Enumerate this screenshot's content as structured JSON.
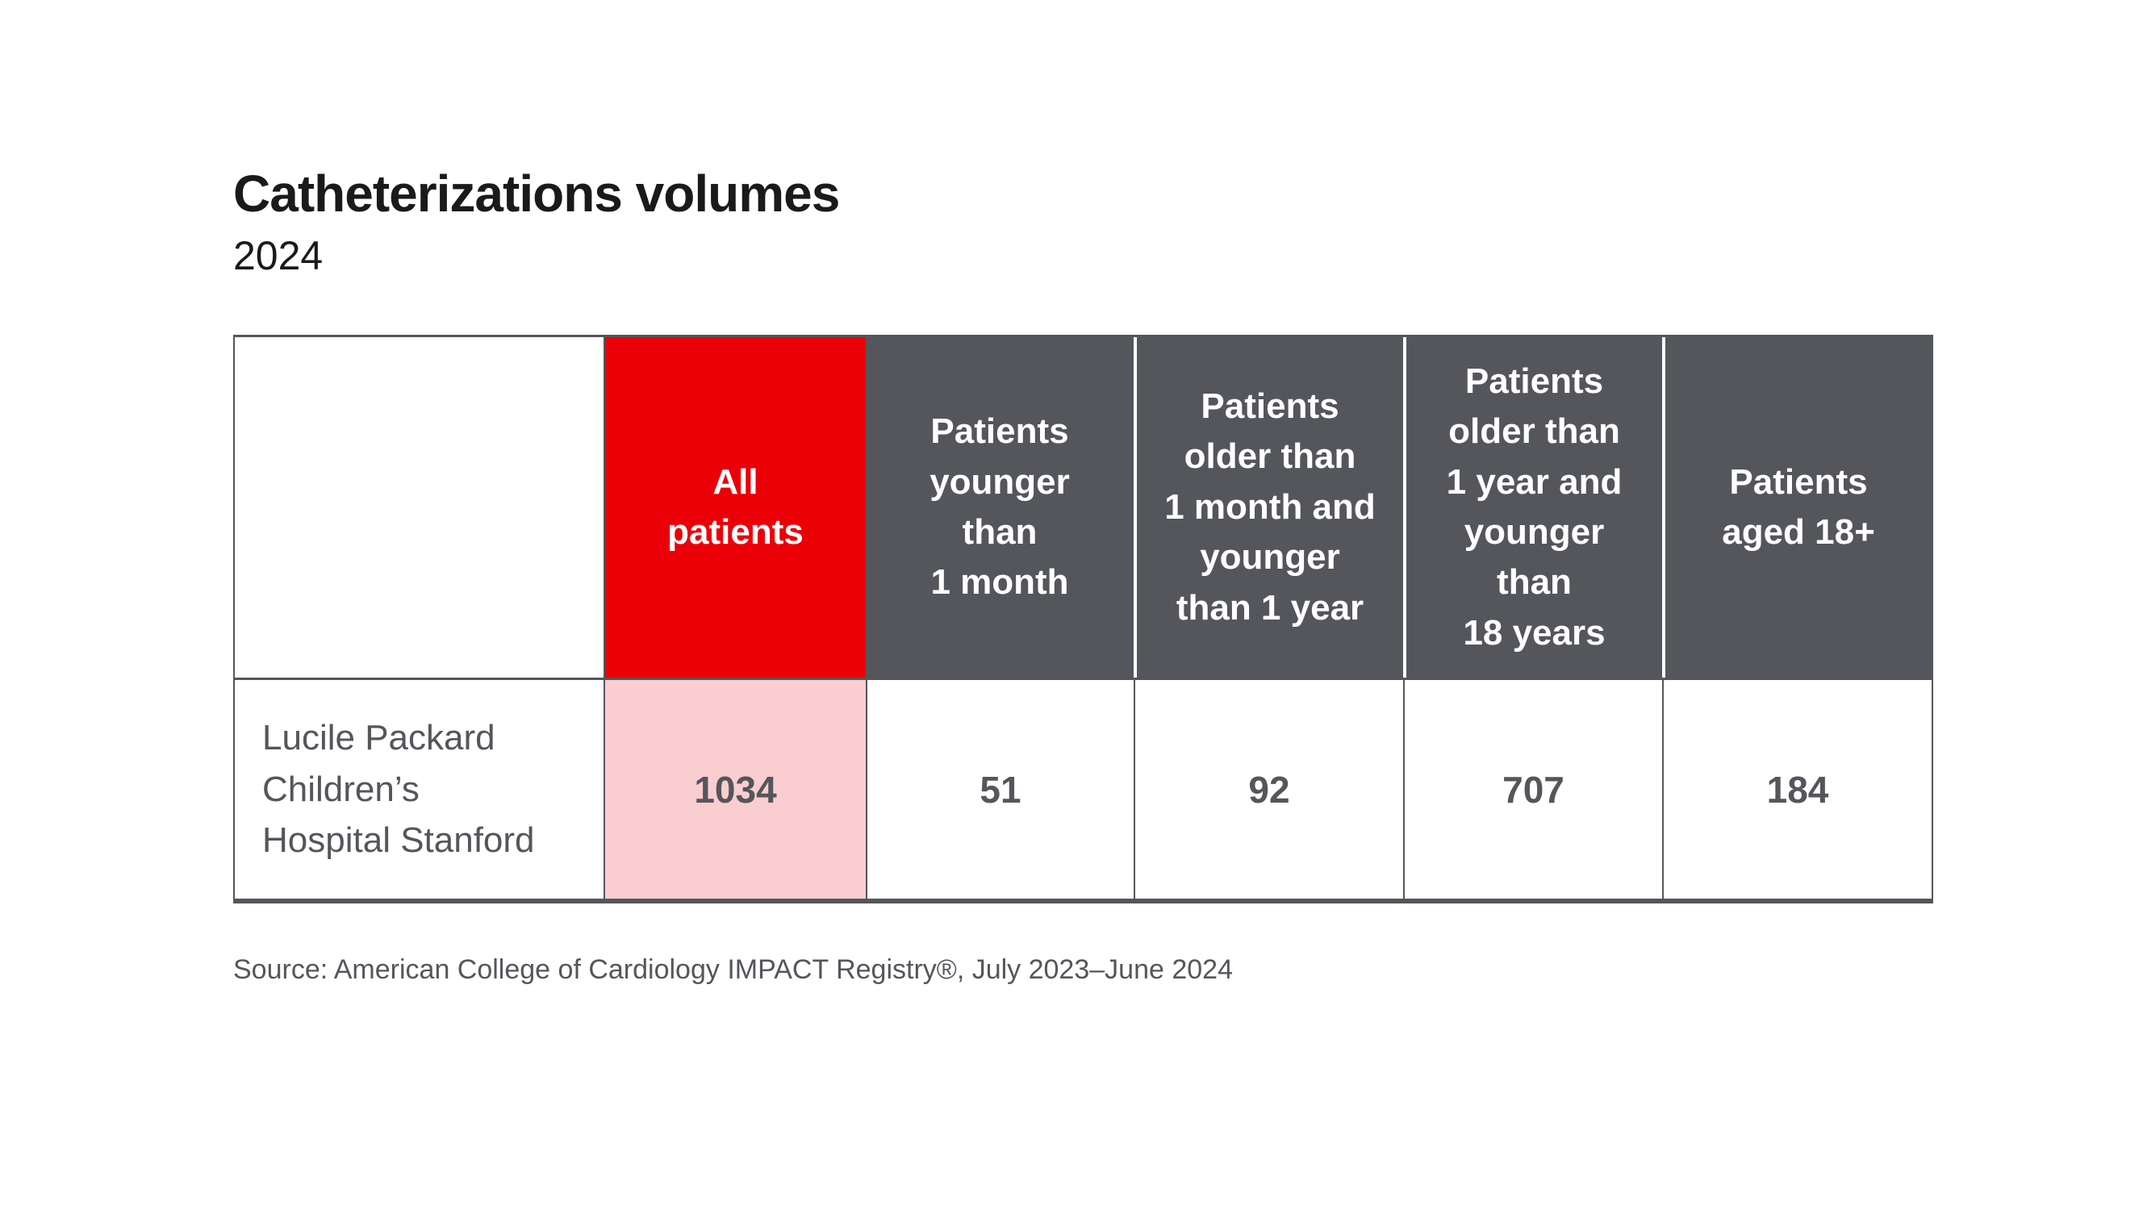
{
  "title": "Catheterizations volumes",
  "subtitle": "2024",
  "source": "Source: American College of Cardiology IMPACT Registry®, July 2023–June 2024",
  "colors": {
    "accent_red": "#EB0008",
    "header_gray": "#54565B",
    "highlight_pink": "#FACDD1",
    "text_gray": "#54565B",
    "title_black": "#1A1A1A"
  },
  "table": {
    "columns": [
      {
        "label": ""
      },
      {
        "label": "All\npatients",
        "highlight": "red"
      },
      {
        "label": "Patients\nyounger\nthan\n1 month"
      },
      {
        "label": "Patients\nolder than\n1 month and\nyounger\nthan 1 year"
      },
      {
        "label": "Patients\nolder than\n1 year and\nyounger\nthan\n18 years"
      },
      {
        "label": "Patients\naged 18+"
      }
    ],
    "rows": [
      {
        "label": "Lucile Packard\nChildren’s\nHospital Stanford",
        "values": [
          "1034",
          "51",
          "92",
          "707",
          "184"
        ]
      }
    ]
  },
  "chart_data": {
    "type": "table",
    "title": "Catheterizations volumes",
    "subtitle": "2024",
    "columns": [
      "",
      "All patients",
      "Patients younger than 1 month",
      "Patients older than 1 month and younger than 1 year",
      "Patients older than 1 year and younger than 18 years",
      "Patients aged 18+"
    ],
    "rows": [
      [
        "Lucile Packard Children’s Hospital Stanford",
        1034,
        51,
        92,
        707,
        184
      ]
    ],
    "highlighted_column": "All patients",
    "source": "Source: American College of Cardiology IMPACT Registry®, July 2023–June 2024"
  }
}
